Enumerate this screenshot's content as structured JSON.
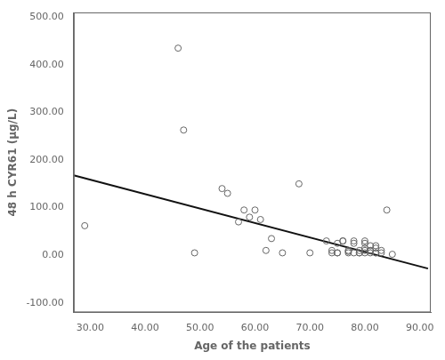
{
  "chart_data": {
    "type": "scatter",
    "x_label": "Age of the patients",
    "y_label": "48 h CYR61 (μg/L)",
    "series": [
      {
        "type": "scatter",
        "marker": "circle",
        "color": "#666666",
        "x": [
          29,
          46,
          47,
          49,
          54,
          55,
          57,
          58,
          59,
          60,
          61,
          62,
          63,
          65,
          68,
          70,
          73,
          74,
          74,
          75,
          75,
          75,
          76,
          76,
          77,
          77,
          77,
          78,
          78,
          78,
          79,
          79,
          79,
          80,
          80,
          80,
          80,
          80,
          81,
          81,
          81,
          81,
          82,
          82,
          82,
          82,
          83,
          83,
          84,
          85
        ],
        "values": [
          62,
          435,
          263,
          5,
          140,
          130,
          70,
          95,
          80,
          95,
          75,
          10,
          35,
          5,
          150,
          5,
          30,
          10,
          5,
          25,
          5,
          5,
          30,
          30,
          10,
          8,
          5,
          30,
          25,
          5,
          5,
          10,
          5,
          15,
          10,
          5,
          25,
          30,
          10,
          10,
          5,
          20,
          15,
          5,
          5,
          20,
          5,
          10,
          95,
          2
        ]
      },
      {
        "type": "line",
        "line_style": "solid",
        "color": "#111111",
        "x": [
          27,
          91.5
        ],
        "values": [
          168,
          -28
        ]
      }
    ],
    "xlim": [
      27,
      92
    ],
    "ylim": [
      -120,
      510
    ],
    "xticks": [
      {
        "value": 30,
        "label": "30.00"
      },
      {
        "value": 40,
        "label": "40.00"
      },
      {
        "value": 50,
        "label": "50.00"
      },
      {
        "value": 60,
        "label": "60.00"
      },
      {
        "value": 70,
        "label": "70.00"
      },
      {
        "value": 80,
        "label": "80.00"
      },
      {
        "value": 90,
        "label": "90.00"
      }
    ],
    "yticks": [
      {
        "value": -100,
        "label": "-100.00"
      },
      {
        "value": 0,
        "label": "0.00"
      },
      {
        "value": 100,
        "label": "100.00"
      },
      {
        "value": 200,
        "label": "200.00"
      },
      {
        "value": 300,
        "label": "300.00"
      },
      {
        "value": 400,
        "label": "400.00"
      },
      {
        "value": 500,
        "label": "500.00"
      }
    ],
    "grid": false
  }
}
